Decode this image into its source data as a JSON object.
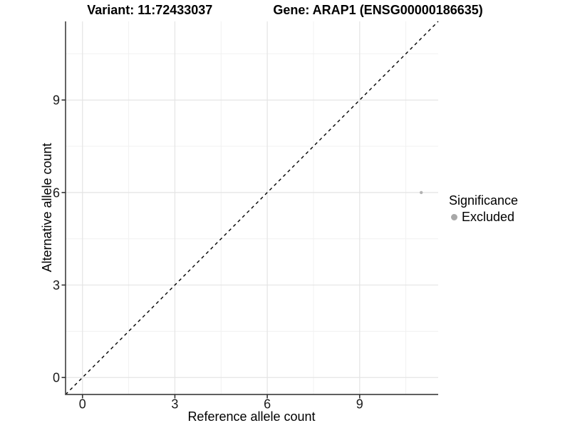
{
  "title": {
    "variant": "Variant: 11:72433037",
    "gene": "Gene: ARAP1 (ENSG00000186635)"
  },
  "chart_data": {
    "type": "scatter",
    "title": "Variant: 11:72433037   Gene: ARAP1 (ENSG00000186635)",
    "xlabel": "Reference allele count",
    "ylabel": "Alternative allele count",
    "xlim": [
      -0.55,
      11.55
    ],
    "ylim": [
      -0.55,
      11.55
    ],
    "x_ticks": [
      0,
      3,
      6,
      9
    ],
    "y_ticks": [
      0,
      3,
      6,
      9
    ],
    "grid": "major+minor",
    "points": [
      {
        "x": 11,
        "y": 6,
        "series": "Excluded"
      }
    ],
    "reference_line": {
      "type": "identity",
      "style": "dashed",
      "color": "#000000"
    },
    "marker": {
      "shape": "circle",
      "radius_px": 2.2,
      "color": "#b3b3b3"
    },
    "legend": {
      "title": "Significance",
      "position": "right",
      "entries": [
        {
          "label": "Excluded",
          "color": "#a8a8a8"
        }
      ]
    }
  },
  "colors": {
    "background": "#ffffff",
    "axis_line": "#4a4a4a",
    "tick_mark": "#333333",
    "tick_label": "#1a1a1a",
    "grid_major": "#e4e4e4",
    "grid_minor": "#f1f1f1",
    "title_text": "#000000"
  }
}
